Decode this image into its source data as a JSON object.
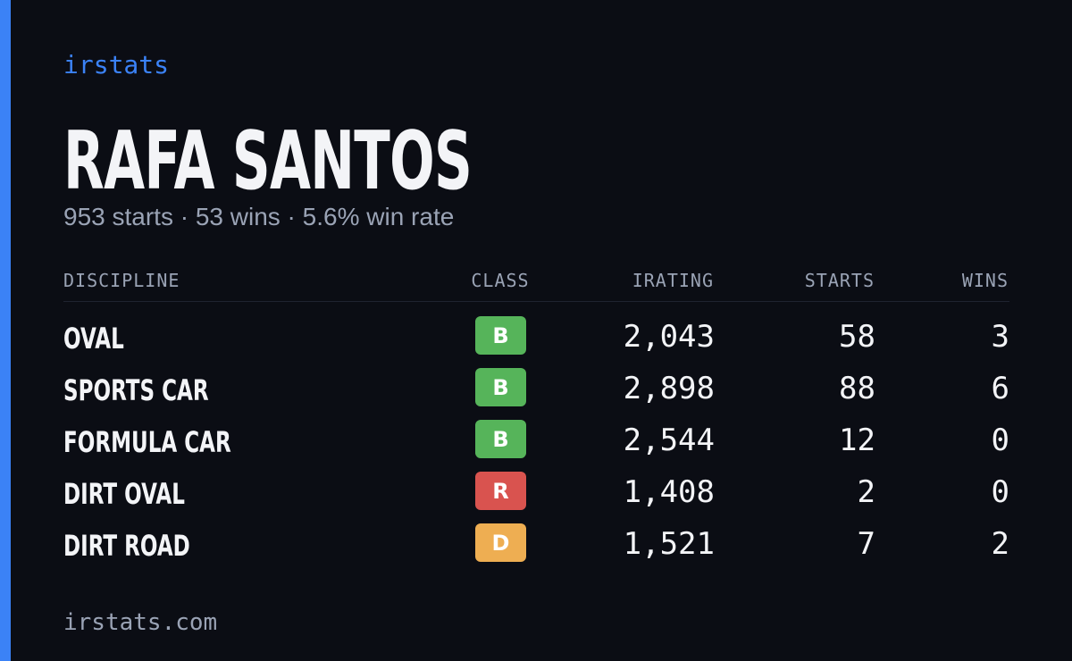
{
  "brand": "irstats",
  "name": "RAFA SANTOS",
  "summary": "953 starts · 53 wins · 5.6% win rate",
  "table": {
    "headers": [
      "DISCIPLINE",
      "CLASS",
      "IRATING",
      "STARTS",
      "WINS"
    ],
    "rows": [
      [
        "OVAL",
        "B",
        "2,043",
        "58",
        "3"
      ],
      [
        "SPORTS CAR",
        "B",
        "2,898",
        "88",
        "6"
      ],
      [
        "FORMULA CAR",
        "B",
        "2,544",
        "12",
        "0"
      ],
      [
        "DIRT OVAL",
        "R",
        "1,408",
        "2",
        "0"
      ],
      [
        "DIRT ROAD",
        "D",
        "1,521",
        "7",
        "2"
      ]
    ]
  },
  "class_colors": {
    "B": "#56b45a",
    "R": "#d9534f",
    "D": "#eeae52"
  },
  "footer": "irstats.com"
}
